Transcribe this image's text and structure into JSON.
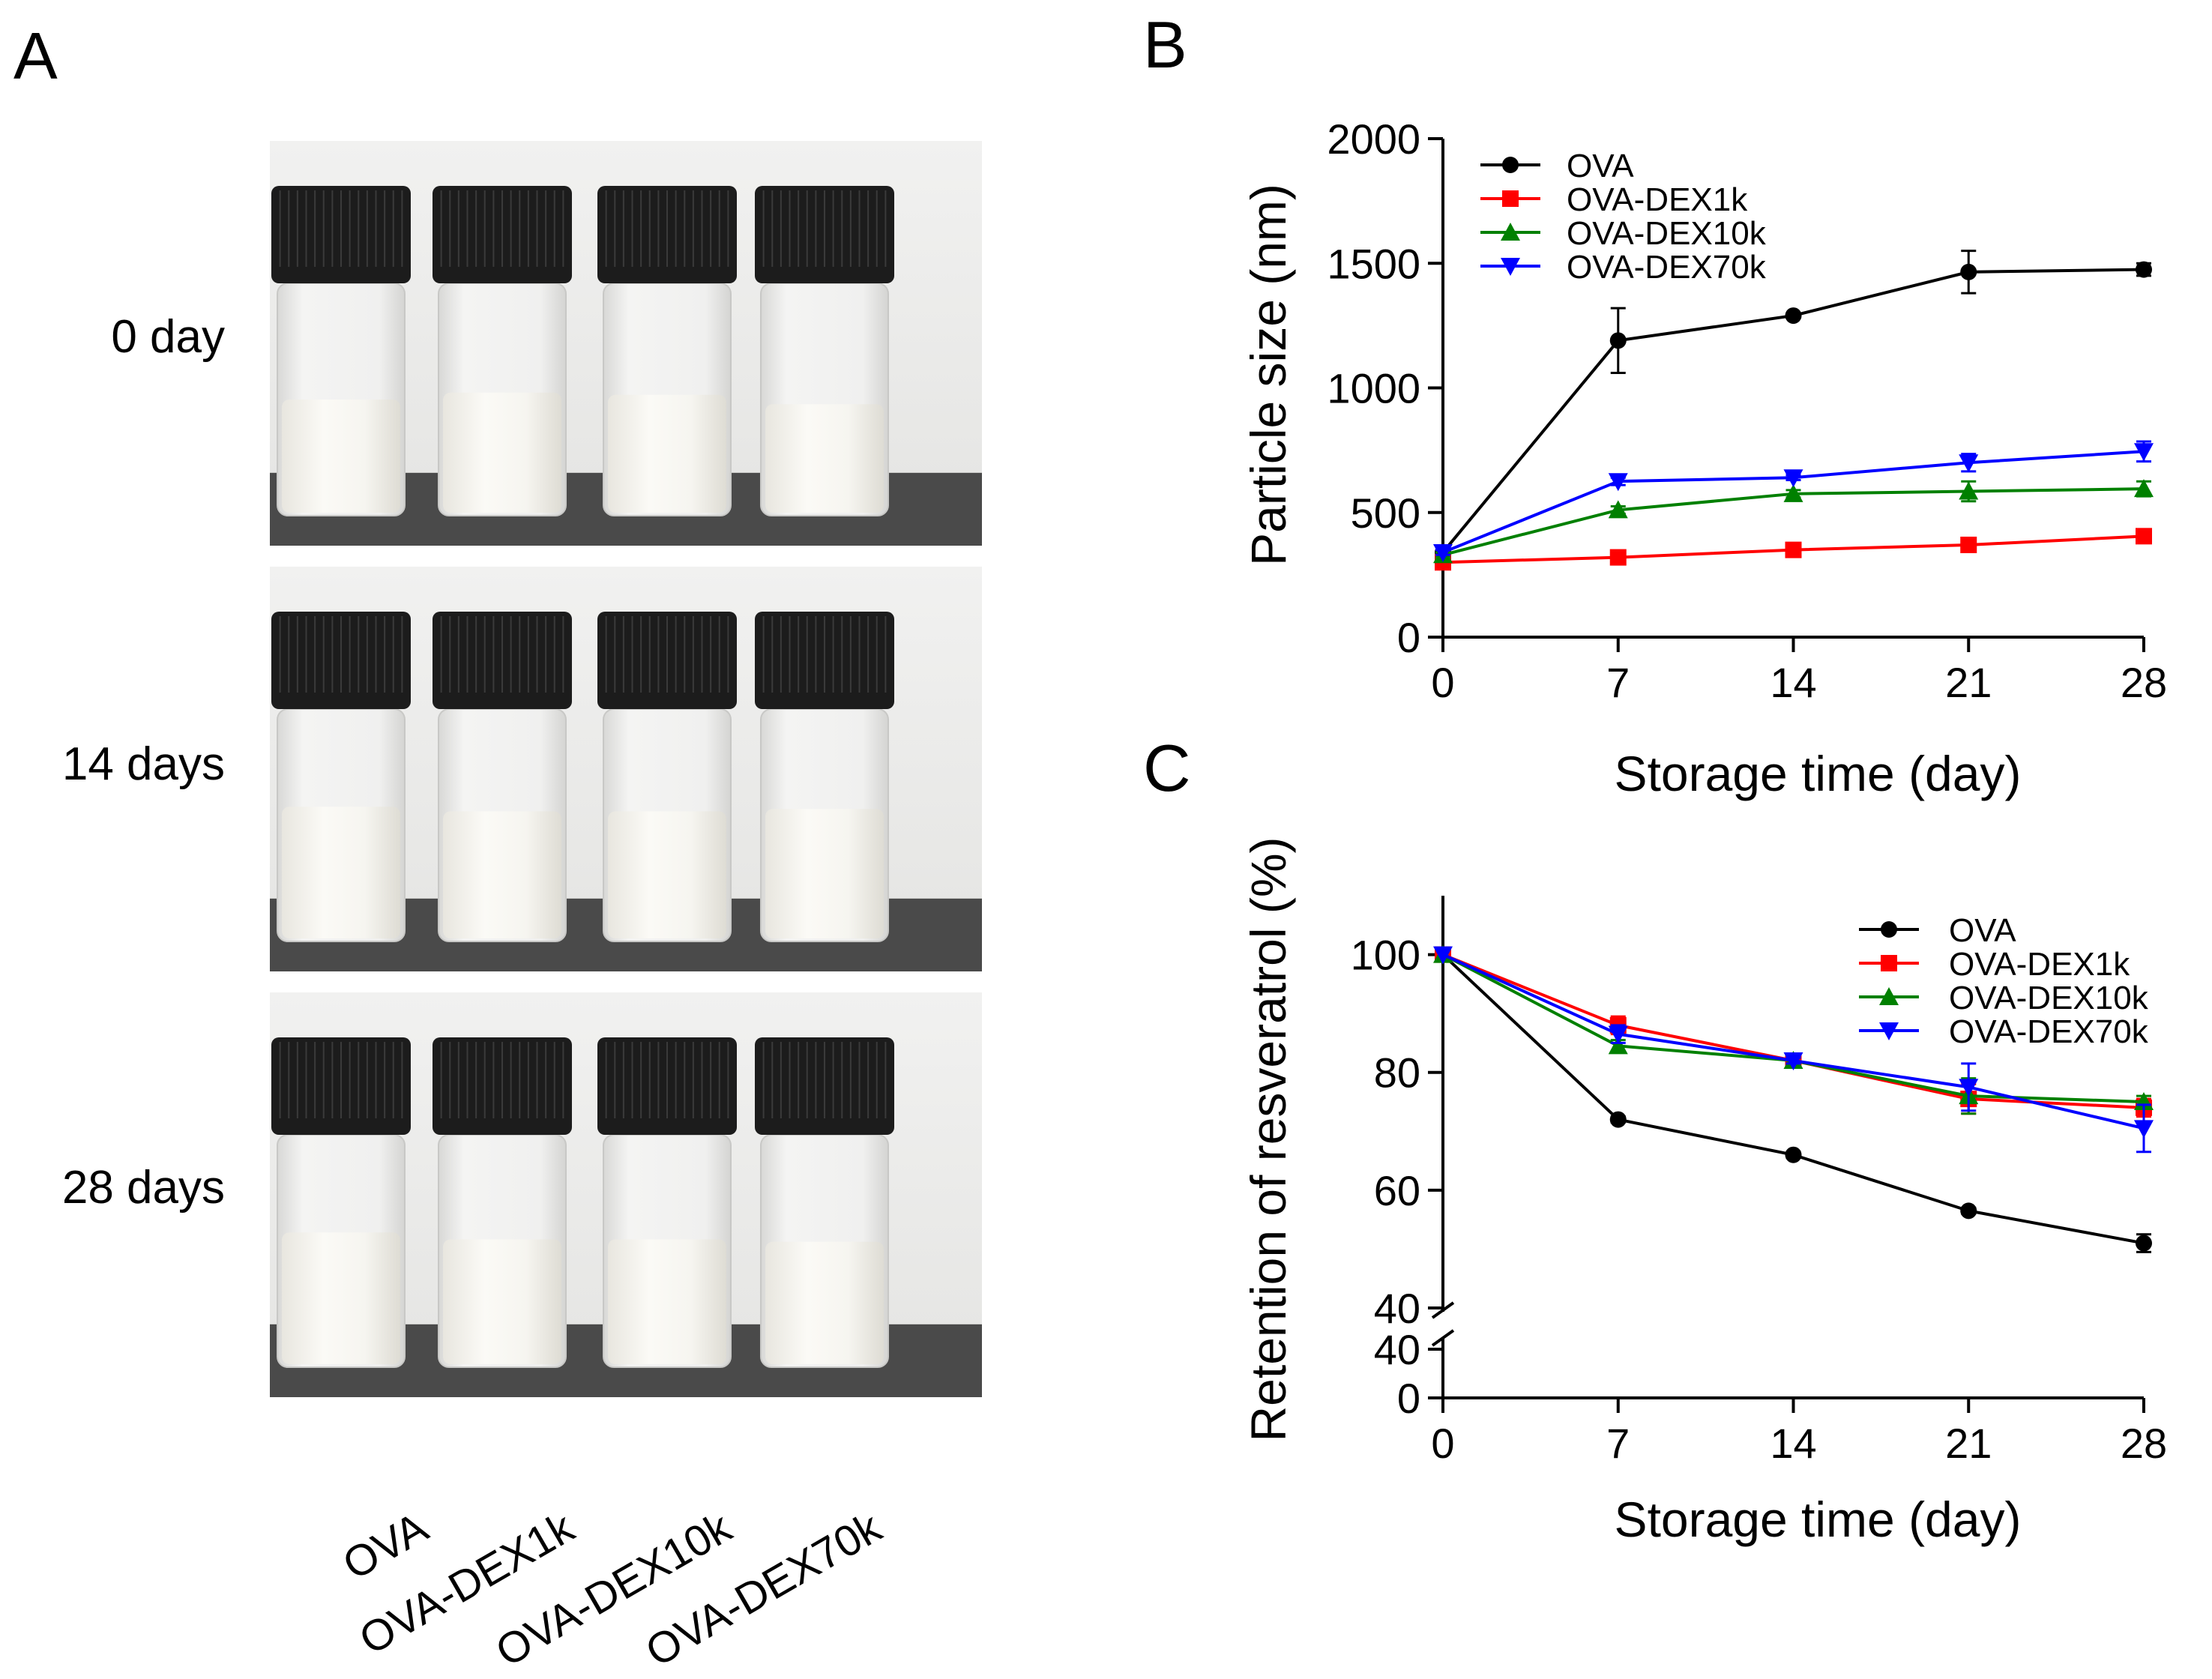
{
  "panels": {
    "a": {
      "label": "A"
    },
    "b": {
      "label": "B"
    },
    "c": {
      "label": "C"
    }
  },
  "photo_panel": {
    "rows": [
      "0 day",
      "14 days",
      "28 days"
    ],
    "samples": [
      "OVA",
      "OVA-DEX1k",
      "OVA-DEX10k",
      "OVA-DEX70k"
    ]
  },
  "colors": {
    "OVA": "#000000",
    "OVA-DEX1k": "#ff0000",
    "OVA-DEX10k": "#008000",
    "OVA-DEX70k": "#0000ff"
  },
  "chart_data": [
    {
      "id": "B",
      "type": "line",
      "title": "",
      "xlabel": "Storage time (day)",
      "ylabel": "Particle size (nm)",
      "x": [
        0,
        7,
        14,
        21,
        28
      ],
      "xticks": [
        "0",
        "7",
        "14",
        "21",
        "28"
      ],
      "ylim": [
        0,
        2000
      ],
      "yticks": [
        "0",
        "500",
        "1000",
        "1500",
        "2000"
      ],
      "legend_position": "top-left",
      "series": [
        {
          "name": "OVA",
          "marker": "circle",
          "values": [
            340,
            1190,
            1290,
            1465,
            1475
          ],
          "errors": [
            20,
            130,
            10,
            85,
            25
          ]
        },
        {
          "name": "OVA-DEX1k",
          "marker": "square",
          "values": [
            300,
            320,
            350,
            370,
            405
          ],
          "errors": [
            5,
            10,
            10,
            10,
            15
          ]
        },
        {
          "name": "OVA-DEX10k",
          "marker": "triangle-up",
          "values": [
            330,
            510,
            575,
            585,
            595
          ],
          "errors": [
            10,
            15,
            15,
            40,
            30
          ]
        },
        {
          "name": "OVA-DEX70k",
          "marker": "triangle-down",
          "values": [
            340,
            625,
            640,
            700,
            745
          ],
          "errors": [
            10,
            15,
            10,
            35,
            40
          ]
        }
      ]
    },
    {
      "id": "C",
      "type": "line",
      "title": "",
      "xlabel": "Storage time (day)",
      "ylabel": "Retention of resveratrol (%)",
      "x": [
        0,
        7,
        14,
        21,
        28
      ],
      "xticks": [
        "0",
        "7",
        "14",
        "21",
        "28"
      ],
      "ylim": [
        40,
        110
      ],
      "y_axis_break": {
        "lower_ticks": [
          "0",
          "40"
        ],
        "upper_start": "40"
      },
      "yticks": [
        "40",
        "60",
        "80",
        "100"
      ],
      "legend_position": "top-right",
      "series": [
        {
          "name": "OVA",
          "marker": "circle",
          "values": [
            100,
            72,
            66,
            56.5,
            51
          ],
          "errors": [
            0,
            0.5,
            0.5,
            0.5,
            1.5
          ]
        },
        {
          "name": "OVA-DEX1k",
          "marker": "square",
          "values": [
            100,
            88,
            82,
            75.5,
            74
          ],
          "errors": [
            0,
            1.5,
            0.5,
            2.5,
            1.5
          ]
        },
        {
          "name": "OVA-DEX10k",
          "marker": "triangle-up",
          "values": [
            100,
            84.5,
            82,
            76,
            75
          ],
          "errors": [
            0,
            1.0,
            0.5,
            3.0,
            1.0
          ]
        },
        {
          "name": "OVA-DEX70k",
          "marker": "triangle-down",
          "values": [
            100,
            86.5,
            82,
            77.5,
            70.5
          ],
          "errors": [
            0,
            1.5,
            0.5,
            4.0,
            4.0
          ]
        }
      ]
    }
  ]
}
